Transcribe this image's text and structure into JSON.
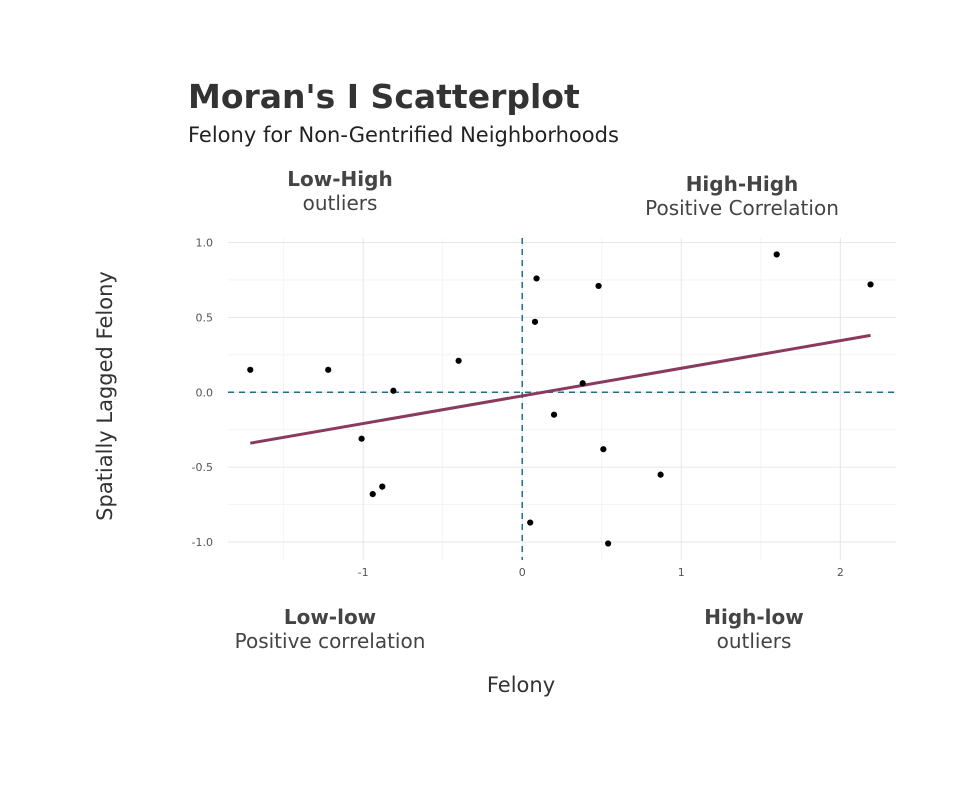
{
  "chart_data": {
    "type": "scatter",
    "title": "Moran's I Scatterplot",
    "subtitle": "Felony for Non-Gentrified Neighborhoods",
    "xlabel": "Felony",
    "ylabel": "Spatially Lagged Felony",
    "xlim": [
      -1.85,
      2.35
    ],
    "ylim": [
      -1.12,
      1.03
    ],
    "x_ticks": [
      -1,
      0,
      1,
      2
    ],
    "y_ticks": [
      -1.0,
      -0.5,
      0.0,
      0.5,
      1.0
    ],
    "y_tick_labels": [
      "-1.0",
      "-0.5",
      "0.0",
      "0.5",
      "1.0"
    ],
    "grid": true,
    "reference_lines": {
      "x": 0,
      "y": 0
    },
    "points": [
      {
        "x": -1.71,
        "y": 0.15
      },
      {
        "x": -1.22,
        "y": 0.15
      },
      {
        "x": -0.81,
        "y": 0.01
      },
      {
        "x": -1.01,
        "y": -0.31
      },
      {
        "x": -0.94,
        "y": -0.68
      },
      {
        "x": -0.88,
        "y": -0.63
      },
      {
        "x": -0.4,
        "y": 0.21
      },
      {
        "x": 0.09,
        "y": 0.76
      },
      {
        "x": 0.08,
        "y": 0.47
      },
      {
        "x": 0.48,
        "y": 0.71
      },
      {
        "x": 0.38,
        "y": 0.06
      },
      {
        "x": 0.2,
        "y": -0.15
      },
      {
        "x": 0.51,
        "y": -0.38
      },
      {
        "x": 0.87,
        "y": -0.55
      },
      {
        "x": 0.05,
        "y": -0.87
      },
      {
        "x": 0.54,
        "y": -1.01
      },
      {
        "x": 1.6,
        "y": 0.92
      },
      {
        "x": 2.19,
        "y": 0.72
      }
    ],
    "fit_line": {
      "x": [
        -1.71,
        2.19
      ],
      "y": [
        -0.34,
        0.38
      ],
      "color": "#8a3a5f"
    },
    "reference_line_color": "#1f6e8c",
    "point_color": "#000000",
    "quadrant_labels": {
      "top_left": {
        "heading": "Low-High",
        "text": "outliers"
      },
      "top_right": {
        "heading": "High-High",
        "text": "Positive Correlation"
      },
      "bottom_left": {
        "heading": "Low-low",
        "text": "Positive correlation"
      },
      "bottom_right": {
        "heading": "High-low",
        "text": "outliers"
      }
    }
  }
}
